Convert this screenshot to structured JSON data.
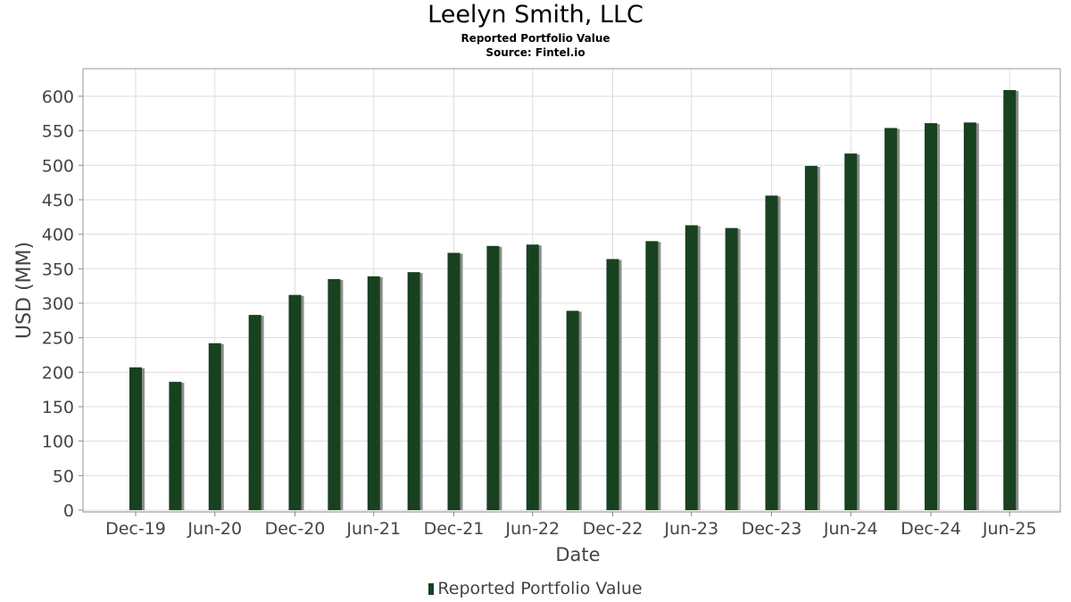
{
  "header": {
    "title": "Leelyn Smith, LLC",
    "subtitle": "Reported Portfolio Value",
    "source": "Source: Fintel.io"
  },
  "legend": {
    "label": "Reported Portfolio Value"
  },
  "colors": {
    "bar": "#17411f",
    "shadow": "#8c8c8c",
    "grid": "#dddddd",
    "plot_border": "#999999"
  },
  "chart_data": {
    "type": "bar",
    "xlabel": "Date",
    "ylabel": "USD (MM)",
    "ylim": [
      0,
      640
    ],
    "yticks": [
      0,
      50,
      100,
      150,
      200,
      250,
      300,
      350,
      400,
      450,
      500,
      550,
      600
    ],
    "grid": true,
    "legend_position": "bottom",
    "x_tick_labels": [
      "Dec-19",
      "Jun-20",
      "Dec-20",
      "Jun-21",
      "Dec-21",
      "Jun-22",
      "Dec-22",
      "Jun-23",
      "Dec-23",
      "Jun-24",
      "Dec-24",
      "Jun-25"
    ],
    "series": [
      {
        "name": "Reported Portfolio Value",
        "x": [
          "2019-12-31",
          "2020-03-31",
          "2020-06-30",
          "2020-09-30",
          "2020-12-31",
          "2021-03-31",
          "2021-06-30",
          "2021-09-30",
          "2021-12-31",
          "2022-03-31",
          "2022-06-30",
          "2022-09-30",
          "2022-12-31",
          "2023-03-31",
          "2023-06-30",
          "2023-09-30",
          "2023-12-31",
          "2024-03-31",
          "2024-06-30",
          "2024-09-30",
          "2024-12-31",
          "2025-03-31",
          "2025-06-30"
        ],
        "values": [
          207,
          186,
          242,
          283,
          312,
          335,
          339,
          345,
          373,
          383,
          385,
          289,
          364,
          390,
          413,
          409,
          456,
          499,
          517,
          554,
          561,
          562,
          609
        ]
      }
    ]
  }
}
